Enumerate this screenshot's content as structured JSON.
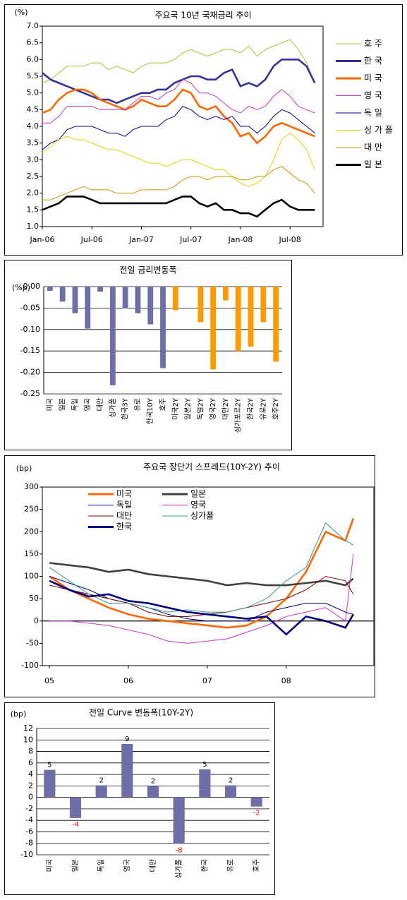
{
  "chart_data": [
    {
      "type": "line",
      "title": "주요국 10년 국채금리 추이",
      "y_label": "(%)",
      "x": [
        "2006-01",
        "2006-02",
        "2006-03",
        "2006-04",
        "2006-05",
        "2006-06",
        "2006-07",
        "2006-08",
        "2006-09",
        "2006-10",
        "2006-11",
        "2006-12",
        "2007-01",
        "2007-02",
        "2007-03",
        "2007-04",
        "2007-05",
        "2007-06",
        "2007-07",
        "2007-08",
        "2007-09",
        "2007-10",
        "2007-11",
        "2007-12",
        "2008-01",
        "2008-02",
        "2008-03",
        "2008-04",
        "2008-05",
        "2008-06",
        "2008-07",
        "2008-08",
        "2008-09",
        "2008-10"
      ],
      "xticks": [
        {
          "value": "2006-01",
          "label": "Jan-06"
        },
        {
          "value": "2006-07",
          "label": "Jul-06"
        },
        {
          "value": "2007-01",
          "label": "Jan-07"
        },
        {
          "value": "2007-07",
          "label": "Jul-07"
        },
        {
          "value": "2008-01",
          "label": "Jan-08"
        },
        {
          "value": "2008-07",
          "label": "Jul-08"
        }
      ],
      "ylim": [
        1,
        7
      ],
      "yticks": [
        {
          "value": 7,
          "label": "7.0"
        },
        6.5,
        {
          "value": 6,
          "label": "6.0"
        },
        5.5,
        {
          "value": 5,
          "label": "5.0"
        },
        4.5,
        {
          "value": 4,
          "label": "4.0"
        },
        3.5,
        {
          "value": 3,
          "label": "3.0"
        },
        2.5,
        {
          "value": 2,
          "label": "2.0"
        },
        1.5,
        {
          "value": 1,
          "label": "1.0"
        }
      ],
      "grid": false,
      "legend": "right",
      "series": [
        {
          "name": "호 주",
          "color": "#99cc33",
          "values": [
            5.3,
            5.4,
            5.6,
            5.8,
            5.8,
            5.8,
            5.9,
            5.9,
            5.7,
            5.8,
            5.7,
            5.6,
            5.8,
            5.9,
            5.9,
            5.9,
            6.0,
            6.2,
            6.3,
            6.2,
            6.1,
            6.2,
            6.3,
            6.3,
            6.2,
            6.4,
            6.1,
            6.3,
            6.4,
            6.5,
            6.6,
            6.3,
            5.9,
            5.3
          ]
        },
        {
          "name": "한 국",
          "color": "#333399",
          "bold": true,
          "values": [
            5.6,
            5.4,
            5.3,
            5.2,
            5.1,
            5.0,
            4.9,
            4.8,
            4.8,
            4.7,
            4.8,
            4.9,
            5.0,
            5.0,
            5.1,
            5.1,
            5.3,
            5.4,
            5.5,
            5.5,
            5.4,
            5.4,
            5.6,
            5.7,
            5.2,
            5.3,
            5.2,
            5.4,
            5.8,
            6.0,
            6.0,
            6.0,
            5.8,
            5.3
          ]
        },
        {
          "name": "미 국",
          "color": "#ff6600",
          "bold": true,
          "values": [
            4.4,
            4.5,
            4.8,
            5.0,
            5.1,
            5.1,
            5.0,
            4.8,
            4.7,
            4.6,
            4.5,
            4.6,
            4.8,
            4.7,
            4.6,
            4.6,
            4.8,
            5.1,
            5.0,
            4.6,
            4.5,
            4.6,
            4.3,
            4.1,
            3.7,
            3.8,
            3.5,
            3.7,
            4.0,
            4.1,
            4.0,
            3.9,
            3.8,
            3.7
          ]
        },
        {
          "name": "영 국",
          "color": "#cc33cc",
          "values": [
            4.1,
            4.1,
            4.3,
            4.6,
            4.6,
            4.6,
            4.6,
            4.5,
            4.5,
            4.5,
            4.5,
            4.7,
            4.9,
            4.9,
            4.8,
            5.0,
            5.1,
            5.4,
            5.3,
            5.0,
            5.0,
            4.9,
            4.7,
            4.5,
            4.4,
            4.6,
            4.5,
            4.6,
            4.9,
            5.1,
            4.9,
            4.6,
            4.5,
            4.4
          ]
        },
        {
          "name": "독 일",
          "color": "#000099",
          "values": [
            3.3,
            3.5,
            3.6,
            3.9,
            4.0,
            4.0,
            4.0,
            3.9,
            3.8,
            3.8,
            3.7,
            3.9,
            4.0,
            4.0,
            4.0,
            4.2,
            4.3,
            4.6,
            4.5,
            4.3,
            4.2,
            4.3,
            4.2,
            4.3,
            4.0,
            4.0,
            3.8,
            4.0,
            4.3,
            4.5,
            4.4,
            4.2,
            4.0,
            3.8
          ]
        },
        {
          "name": "싱 가 폴",
          "color": "#e6d200",
          "values": [
            3.2,
            3.4,
            3.6,
            3.7,
            3.6,
            3.6,
            3.5,
            3.4,
            3.3,
            3.3,
            3.2,
            3.1,
            3.0,
            2.9,
            2.9,
            2.8,
            2.9,
            3.0,
            3.0,
            2.9,
            2.8,
            2.7,
            2.7,
            2.5,
            2.3,
            2.2,
            2.3,
            2.5,
            3.0,
            3.6,
            3.8,
            3.6,
            3.3,
            2.7
          ]
        },
        {
          "name": "대 만",
          "color": "#cc9900",
          "values": [
            1.8,
            1.8,
            1.9,
            2.0,
            2.1,
            2.2,
            2.1,
            2.1,
            2.1,
            2.0,
            2.0,
            2.0,
            2.1,
            2.1,
            2.1,
            2.1,
            2.2,
            2.4,
            2.5,
            2.5,
            2.4,
            2.5,
            2.5,
            2.5,
            2.4,
            2.4,
            2.5,
            2.5,
            2.7,
            2.8,
            2.6,
            2.4,
            2.3,
            2.0
          ]
        },
        {
          "name": "일 본",
          "color": "#000000",
          "bold": true,
          "values": [
            1.5,
            1.6,
            1.7,
            1.9,
            1.9,
            1.9,
            1.8,
            1.7,
            1.7,
            1.7,
            1.7,
            1.7,
            1.7,
            1.7,
            1.7,
            1.7,
            1.8,
            1.9,
            1.9,
            1.7,
            1.6,
            1.7,
            1.5,
            1.5,
            1.4,
            1.4,
            1.3,
            1.5,
            1.7,
            1.8,
            1.6,
            1.5,
            1.5,
            1.5
          ]
        }
      ]
    },
    {
      "type": "bar",
      "title": "전일 금리변동폭",
      "y_label": "(%p)",
      "categories": [
        "미국",
        "일본",
        "독일",
        "영국",
        "대만",
        "싱가폴",
        "한국3Y",
        "유로",
        "한국10Y",
        "호주",
        "미국2Y",
        "일본2Y",
        "독일2Y",
        "영국2Y",
        "대만2Y",
        "싱가포르2Y",
        "한국2Y",
        "유로2Y",
        "호주2Y"
      ],
      "values": [
        -0.01,
        -0.035,
        -0.062,
        -0.098,
        -0.012,
        -0.23,
        -0.05,
        -0.062,
        -0.088,
        -0.19,
        -0.055,
        0,
        -0.083,
        -0.193,
        -0.032,
        -0.15,
        -0.14,
        -0.083,
        -0.175
      ],
      "colors": [
        "#6e6ea8",
        "#6e6ea8",
        "#6e6ea8",
        "#6e6ea8",
        "#6e6ea8",
        "#6e6ea8",
        "#6e6ea8",
        "#6e6ea8",
        "#6e6ea8",
        "#6e6ea8",
        "#ff9900",
        "#ff9900",
        "#ff9900",
        "#ff9900",
        "#ff9900",
        "#ff9900",
        "#ff9900",
        "#ff9900",
        "#ff9900"
      ],
      "ylim": [
        -0.25,
        0
      ],
      "yticks": [
        {
          "value": 0,
          "label": "0.00"
        },
        {
          "value": -0.05,
          "label": "-0.05"
        },
        {
          "value": -0.1,
          "label": "-0.10"
        },
        {
          "value": -0.15,
          "label": "-0.15"
        },
        {
          "value": -0.2,
          "label": "-0.20"
        },
        {
          "value": -0.25,
          "label": "-0.25"
        }
      ],
      "grid": true
    },
    {
      "type": "line",
      "title": "주요국 장단기 스프레드(10Y-2Y) 추이",
      "y_label": "(bp)",
      "x": [
        2005,
        2005.25,
        2005.5,
        2005.75,
        2006,
        2006.25,
        2006.5,
        2006.75,
        2007,
        2007.25,
        2007.5,
        2007.75,
        2008,
        2008.25,
        2008.5,
        2008.75,
        2008.85
      ],
      "xlim": [
        2004.91,
        2009.11
      ],
      "xticks": [
        {
          "value": 2005,
          "label": "05"
        },
        {
          "value": 2006,
          "label": "06"
        },
        {
          "value": 2007,
          "label": "07"
        },
        {
          "value": 2008,
          "label": "08"
        }
      ],
      "ylim": [
        -100,
        300
      ],
      "yticks": [
        300,
        250,
        200,
        150,
        100,
        50,
        0,
        -50,
        -100
      ],
      "grid": false,
      "legend": "upper left",
      "series": [
        {
          "name": "미국",
          "color": "#ff6600",
          "bold": true,
          "values": [
            100,
            70,
            50,
            30,
            15,
            5,
            0,
            -5,
            -10,
            -15,
            -10,
            10,
            50,
            110,
            200,
            180,
            230
          ]
        },
        {
          "name": "일본",
          "color": "#404040",
          "bold": true,
          "values": [
            130,
            125,
            120,
            110,
            115,
            105,
            100,
            95,
            90,
            80,
            85,
            80,
            80,
            85,
            90,
            80,
            95
          ]
        },
        {
          "name": "독일",
          "color": "#000080",
          "values": [
            100,
            85,
            70,
            50,
            40,
            30,
            15,
            5,
            0,
            0,
            0,
            20,
            30,
            40,
            40,
            20,
            15
          ]
        },
        {
          "name": "영국",
          "color": "#cc33cc",
          "values": [
            0,
            0,
            -5,
            -10,
            -20,
            -30,
            -45,
            -50,
            -45,
            -40,
            -25,
            -10,
            10,
            20,
            30,
            0,
            150
          ]
        },
        {
          "name": "대만",
          "color": "#800000",
          "values": [
            80,
            70,
            60,
            50,
            40,
            20,
            10,
            10,
            15,
            20,
            30,
            40,
            50,
            70,
            100,
            90,
            60
          ]
        },
        {
          "name": "싱가폴",
          "color": "#339999",
          "values": [
            120,
            90,
            60,
            40,
            40,
            30,
            20,
            25,
            20,
            20,
            30,
            50,
            90,
            120,
            220,
            180,
            170
          ]
        },
        {
          "name": "한국",
          "color": "#000080",
          "bold": true,
          "values": [
            90,
            70,
            55,
            60,
            45,
            40,
            30,
            20,
            15,
            10,
            5,
            10,
            -30,
            10,
            0,
            -15,
            15
          ]
        }
      ]
    },
    {
      "type": "bar",
      "title": "전일 Curve 변동폭(10Y-2Y)",
      "y_label": "(bp)",
      "categories": [
        "미국",
        "일본",
        "독일",
        "영국",
        "대만",
        "싱가폴",
        "한국",
        "유로",
        "호주"
      ],
      "values": [
        4.8,
        -3.6,
        2.1,
        9.3,
        2.0,
        -8.1,
        4.9,
        2.1,
        -1.6
      ],
      "value_labels": [
        "5",
        "-4",
        "2",
        "9",
        "2",
        "-8",
        "5",
        "2",
        "-2"
      ],
      "color": "#6e6ea8",
      "negative_label_color": "#ff0000",
      "ylim": [
        -10,
        12
      ],
      "yticks": [
        12,
        10,
        8,
        6,
        4,
        2,
        0,
        -2,
        -4,
        -6,
        -8,
        -10
      ],
      "grid": true
    }
  ]
}
